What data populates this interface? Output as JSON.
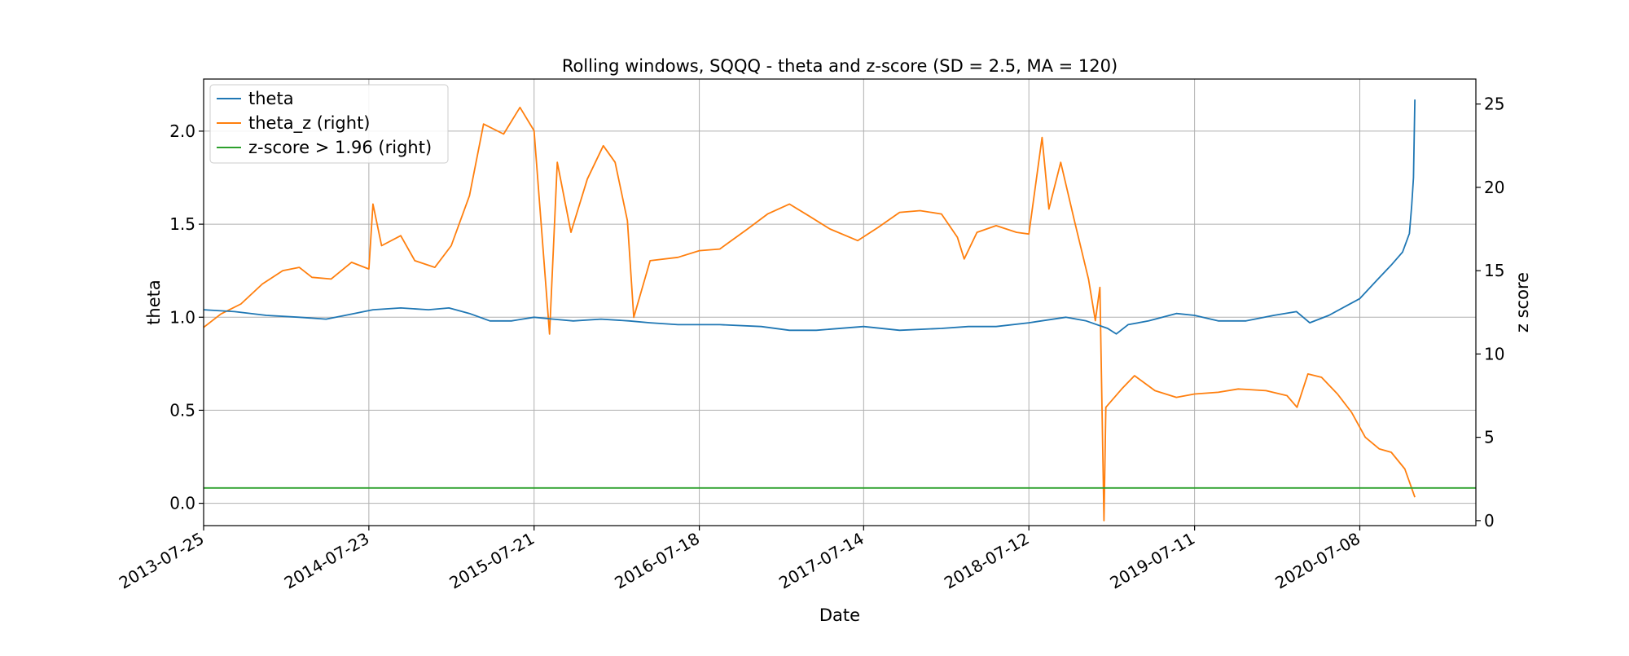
{
  "chart_data": {
    "type": "line",
    "title": "Rolling windows, SQQQ - theta and z-score (SD = 2.5, MA = 120)",
    "xlabel": "Date",
    "ylabel": "theta",
    "ylabel_right": "z score",
    "x_tick_labels": [
      "2013-07-25",
      "2014-07-23",
      "2015-07-21",
      "2016-07-18",
      "2017-07-14",
      "2018-07-12",
      "2019-07-11",
      "2020-07-08"
    ],
    "xlim": [
      "2013-07-25",
      "2021-03-20"
    ],
    "ylim": [
      -0.12,
      2.28
    ],
    "ylim_right": [
      -0.3,
      26.5
    ],
    "y_ticks": [
      0.0,
      0.5,
      1.0,
      1.5,
      2.0
    ],
    "y_tick_labels": [
      "0.0",
      "0.5",
      "1.0",
      "1.5",
      "2.0"
    ],
    "y_ticks_right": [
      0,
      5,
      10,
      15,
      20,
      25
    ],
    "y_tick_labels_right": [
      "0",
      "5",
      "10",
      "15",
      "20",
      "25"
    ],
    "grid": true,
    "legend_position": "top-left",
    "series": [
      {
        "name": "theta",
        "axis": "left",
        "color": "#1f77b4",
        "points": [
          [
            "2013-07-25",
            1.04
          ],
          [
            "2013-10-01",
            1.03
          ],
          [
            "2013-12-10",
            1.01
          ],
          [
            "2014-02-20",
            1.0
          ],
          [
            "2014-04-20",
            0.99
          ],
          [
            "2014-06-01",
            1.01
          ],
          [
            "2014-08-01",
            1.04
          ],
          [
            "2014-10-01",
            1.05
          ],
          [
            "2014-12-01",
            1.04
          ],
          [
            "2015-01-15",
            1.05
          ],
          [
            "2015-03-01",
            1.02
          ],
          [
            "2015-04-15",
            0.98
          ],
          [
            "2015-06-01",
            0.98
          ],
          [
            "2015-07-21",
            1.0
          ],
          [
            "2015-09-01",
            0.99
          ],
          [
            "2015-10-15",
            0.98
          ],
          [
            "2015-12-15",
            0.99
          ],
          [
            "2016-02-15",
            0.98
          ],
          [
            "2016-04-01",
            0.97
          ],
          [
            "2016-06-01",
            0.96
          ],
          [
            "2016-09-01",
            0.96
          ],
          [
            "2016-12-01",
            0.95
          ],
          [
            "2017-02-01",
            0.93
          ],
          [
            "2017-04-01",
            0.93
          ],
          [
            "2017-07-14",
            0.95
          ],
          [
            "2017-10-01",
            0.93
          ],
          [
            "2018-01-01",
            0.94
          ],
          [
            "2018-03-01",
            0.95
          ],
          [
            "2018-05-01",
            0.95
          ],
          [
            "2018-07-12",
            0.97
          ],
          [
            "2018-10-01",
            1.0
          ],
          [
            "2018-11-15",
            0.98
          ],
          [
            "2019-01-01",
            0.94
          ],
          [
            "2019-01-20",
            0.91
          ],
          [
            "2019-02-15",
            0.96
          ],
          [
            "2019-04-01",
            0.98
          ],
          [
            "2019-06-01",
            1.02
          ],
          [
            "2019-07-11",
            1.01
          ],
          [
            "2019-09-01",
            0.98
          ],
          [
            "2019-11-01",
            0.98
          ],
          [
            "2020-01-01",
            1.01
          ],
          [
            "2020-02-20",
            1.03
          ],
          [
            "2020-03-20",
            0.97
          ],
          [
            "2020-05-01",
            1.01
          ],
          [
            "2020-07-08",
            1.1
          ],
          [
            "2020-08-15",
            1.2
          ],
          [
            "2020-09-15",
            1.28
          ],
          [
            "2020-10-10",
            1.35
          ],
          [
            "2020-10-25",
            1.45
          ],
          [
            "2020-10-30",
            1.6
          ],
          [
            "2020-11-03",
            1.75
          ],
          [
            "2020-11-06",
            2.17
          ]
        ]
      },
      {
        "name": "theta_z (right)",
        "axis": "right",
        "color": "#ff7f0e",
        "points": [
          [
            "2013-07-25",
            11.6
          ],
          [
            "2013-09-01",
            12.4
          ],
          [
            "2013-10-15",
            13.0
          ],
          [
            "2013-12-01",
            14.2
          ],
          [
            "2014-01-15",
            15.0
          ],
          [
            "2014-02-20",
            15.2
          ],
          [
            "2014-03-20",
            14.6
          ],
          [
            "2014-05-01",
            14.5
          ],
          [
            "2014-06-15",
            15.5
          ],
          [
            "2014-07-23",
            15.1
          ],
          [
            "2014-08-01",
            19.0
          ],
          [
            "2014-08-20",
            16.5
          ],
          [
            "2014-10-01",
            17.1
          ],
          [
            "2014-11-01",
            15.6
          ],
          [
            "2014-12-15",
            15.2
          ],
          [
            "2015-01-20",
            16.5
          ],
          [
            "2015-03-01",
            19.5
          ],
          [
            "2015-04-01",
            23.8
          ],
          [
            "2015-05-15",
            23.2
          ],
          [
            "2015-06-20",
            24.8
          ],
          [
            "2015-07-21",
            23.4
          ],
          [
            "2015-08-24",
            11.2
          ],
          [
            "2015-09-10",
            21.5
          ],
          [
            "2015-10-10",
            17.3
          ],
          [
            "2015-11-15",
            20.5
          ],
          [
            "2015-12-20",
            22.5
          ],
          [
            "2016-01-15",
            21.5
          ],
          [
            "2016-02-11",
            18.0
          ],
          [
            "2016-02-25",
            12.2
          ],
          [
            "2016-04-01",
            15.6
          ],
          [
            "2016-06-01",
            15.8
          ],
          [
            "2016-07-18",
            16.2
          ],
          [
            "2016-09-01",
            16.3
          ],
          [
            "2016-11-01",
            17.5
          ],
          [
            "2016-12-15",
            18.4
          ],
          [
            "2017-02-01",
            19.0
          ],
          [
            "2017-03-15",
            18.3
          ],
          [
            "2017-05-01",
            17.5
          ],
          [
            "2017-07-01",
            16.8
          ],
          [
            "2017-08-15",
            17.6
          ],
          [
            "2017-10-01",
            18.5
          ],
          [
            "2017-11-15",
            18.6
          ],
          [
            "2018-01-01",
            18.4
          ],
          [
            "2018-02-05",
            17.0
          ],
          [
            "2018-02-20",
            15.7
          ],
          [
            "2018-03-20",
            17.3
          ],
          [
            "2018-05-01",
            17.7
          ],
          [
            "2018-06-15",
            17.3
          ],
          [
            "2018-07-12",
            17.2
          ],
          [
            "2018-08-10",
            23.0
          ],
          [
            "2018-08-25",
            18.7
          ],
          [
            "2018-09-20",
            21.5
          ],
          [
            "2018-10-20",
            18.0
          ],
          [
            "2018-11-20",
            14.5
          ],
          [
            "2018-12-05",
            12.0
          ],
          [
            "2018-12-15",
            14.0
          ],
          [
            "2018-12-24",
            0.0
          ],
          [
            "2018-12-28",
            6.8
          ],
          [
            "2019-02-01",
            7.9
          ],
          [
            "2019-03-01",
            8.7
          ],
          [
            "2019-04-15",
            7.8
          ],
          [
            "2019-06-01",
            7.4
          ],
          [
            "2019-07-11",
            7.6
          ],
          [
            "2019-09-01",
            7.7
          ],
          [
            "2019-10-15",
            7.9
          ],
          [
            "2019-12-15",
            7.8
          ],
          [
            "2020-01-30",
            7.5
          ],
          [
            "2020-02-21",
            6.8
          ],
          [
            "2020-03-16",
            8.8
          ],
          [
            "2020-04-15",
            8.6
          ],
          [
            "2020-05-20",
            7.6
          ],
          [
            "2020-06-20",
            6.5
          ],
          [
            "2020-07-20",
            5.0
          ],
          [
            "2020-08-20",
            4.3
          ],
          [
            "2020-09-15",
            4.1
          ],
          [
            "2020-10-15",
            3.1
          ],
          [
            "2020-11-06",
            1.4
          ]
        ]
      },
      {
        "name": "z-score > 1.96 (right)",
        "axis": "right",
        "color": "#2ca02c",
        "points": [
          [
            "2013-07-25",
            1.96
          ],
          [
            "2021-03-20",
            1.96
          ]
        ]
      }
    ]
  }
}
